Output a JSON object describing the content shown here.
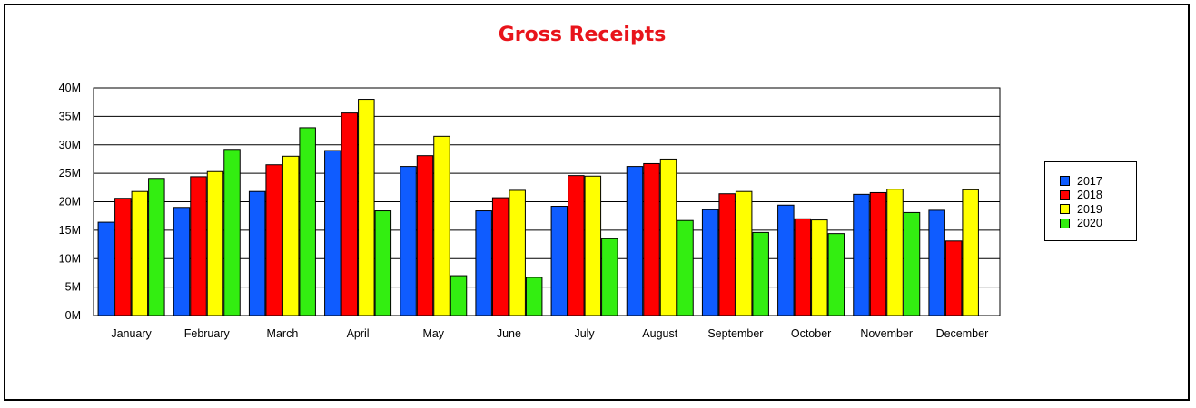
{
  "chart_data": {
    "type": "bar",
    "title": "Gross Receipts",
    "xlabel": "",
    "ylabel": "",
    "ylim": [
      0,
      40
    ],
    "yticks": [
      "0M",
      "5M",
      "10M",
      "15M",
      "20M",
      "25M",
      "30M",
      "35M",
      "40M"
    ],
    "grid": true,
    "legend_position": "right",
    "categories": [
      "January",
      "February",
      "March",
      "April",
      "May",
      "June",
      "July",
      "August",
      "September",
      "October",
      "November",
      "December"
    ],
    "series": [
      {
        "name": "2017",
        "color": "#0f5cff",
        "values": [
          16.4,
          19.0,
          21.8,
          29.0,
          26.2,
          18.4,
          19.2,
          26.2,
          18.6,
          19.4,
          21.3,
          18.5
        ]
      },
      {
        "name": "2018",
        "color": "#ff0000",
        "values": [
          20.6,
          24.4,
          26.5,
          35.6,
          28.1,
          20.7,
          24.6,
          26.7,
          21.4,
          17.0,
          21.6,
          13.1
        ]
      },
      {
        "name": "2019",
        "color": "#ffff00",
        "values": [
          21.8,
          25.3,
          28.0,
          38.0,
          31.5,
          22.0,
          24.5,
          27.5,
          21.8,
          16.8,
          22.2,
          22.1
        ]
      },
      {
        "name": "2020",
        "color": "#33ee11",
        "values": [
          24.1,
          29.2,
          33.0,
          18.4,
          7.0,
          6.7,
          13.5,
          16.7,
          14.6,
          14.4,
          18.1,
          0
        ]
      }
    ]
  }
}
